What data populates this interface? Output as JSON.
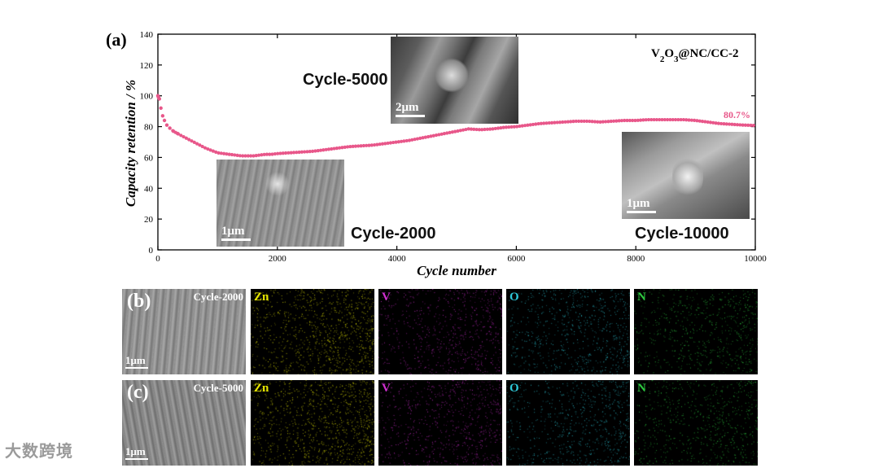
{
  "chart_data": {
    "type": "scatter",
    "panel_label": "(a)",
    "xlabel": "Cycle number",
    "ylabel": "Capacity retention / %",
    "xlim": [
      0,
      10000
    ],
    "ylim": [
      0,
      140
    ],
    "x_ticks": [
      0,
      2000,
      4000,
      6000,
      8000,
      10000
    ],
    "y_ticks": [
      0,
      20,
      40,
      60,
      80,
      100,
      120,
      140
    ],
    "legend": "V2O3@NC/CC-2",
    "end_label": "80.7%",
    "color": "#e8578a",
    "series": [
      {
        "points": [
          [
            0,
            100
          ],
          [
            10,
            99
          ],
          [
            25,
            98
          ],
          [
            50,
            92
          ],
          [
            80,
            87
          ],
          [
            110,
            84
          ],
          [
            150,
            81
          ],
          [
            200,
            79
          ],
          [
            260,
            77
          ],
          [
            330,
            75.5
          ],
          [
            400,
            74
          ],
          [
            500,
            72
          ],
          [
            600,
            70
          ],
          [
            700,
            68
          ],
          [
            800,
            66
          ],
          [
            900,
            64.5
          ],
          [
            1000,
            63
          ],
          [
            1100,
            62.5
          ],
          [
            1200,
            62
          ],
          [
            1300,
            61.5
          ],
          [
            1400,
            61
          ],
          [
            1500,
            61
          ],
          [
            1600,
            61
          ],
          [
            1700,
            61.5
          ],
          [
            1800,
            62
          ],
          [
            1900,
            62
          ],
          [
            2000,
            62.5
          ],
          [
            2200,
            63
          ],
          [
            2400,
            63.5
          ],
          [
            2600,
            64
          ],
          [
            2800,
            65
          ],
          [
            3000,
            66
          ],
          [
            3200,
            67
          ],
          [
            3400,
            67.5
          ],
          [
            3600,
            68
          ],
          [
            3800,
            69
          ],
          [
            4000,
            70
          ],
          [
            4200,
            71
          ],
          [
            4400,
            72.5
          ],
          [
            4600,
            74
          ],
          [
            4800,
            75.5
          ],
          [
            5000,
            77
          ],
          [
            5200,
            78.5
          ],
          [
            5400,
            78
          ],
          [
            5600,
            78.5
          ],
          [
            5800,
            79.5
          ],
          [
            6000,
            80
          ],
          [
            6200,
            81
          ],
          [
            6400,
            82
          ],
          [
            6600,
            82.5
          ],
          [
            6800,
            83
          ],
          [
            7000,
            83.5
          ],
          [
            7200,
            83.5
          ],
          [
            7400,
            83
          ],
          [
            7600,
            83.5
          ],
          [
            7800,
            84
          ],
          [
            8000,
            84
          ],
          [
            8200,
            84.5
          ],
          [
            8400,
            84.5
          ],
          [
            8600,
            84.5
          ],
          [
            8800,
            84.5
          ],
          [
            9000,
            84
          ],
          [
            9200,
            83
          ],
          [
            9400,
            82
          ],
          [
            9600,
            81.5
          ],
          [
            9800,
            81
          ],
          [
            10000,
            80.7
          ]
        ]
      }
    ]
  },
  "insets": [
    {
      "cycle": "Cycle-5000",
      "scale": "2μm"
    },
    {
      "cycle": "Cycle-2000",
      "scale": "1μm"
    },
    {
      "cycle": "Cycle-10000",
      "scale": "1μm"
    }
  ],
  "mapping_rows": [
    {
      "letter": "(b)",
      "cycle": "Cycle-2000",
      "scale": "1μm",
      "elements": [
        {
          "label": "Zn",
          "color": "#e6e600"
        },
        {
          "label": "V",
          "color": "#d12fd1"
        },
        {
          "label": "O",
          "color": "#2ec8d8"
        },
        {
          "label": "N",
          "color": "#2ec840"
        }
      ]
    },
    {
      "letter": "(c)",
      "cycle": "Cycle-5000",
      "scale": "1μm",
      "elements": [
        {
          "label": "Zn",
          "color": "#e6e600"
        },
        {
          "label": "V",
          "color": "#d12fd1"
        },
        {
          "label": "O",
          "color": "#2ec8d8"
        },
        {
          "label": "N",
          "color": "#2ec840"
        }
      ]
    }
  ],
  "watermark": "大数跨境"
}
